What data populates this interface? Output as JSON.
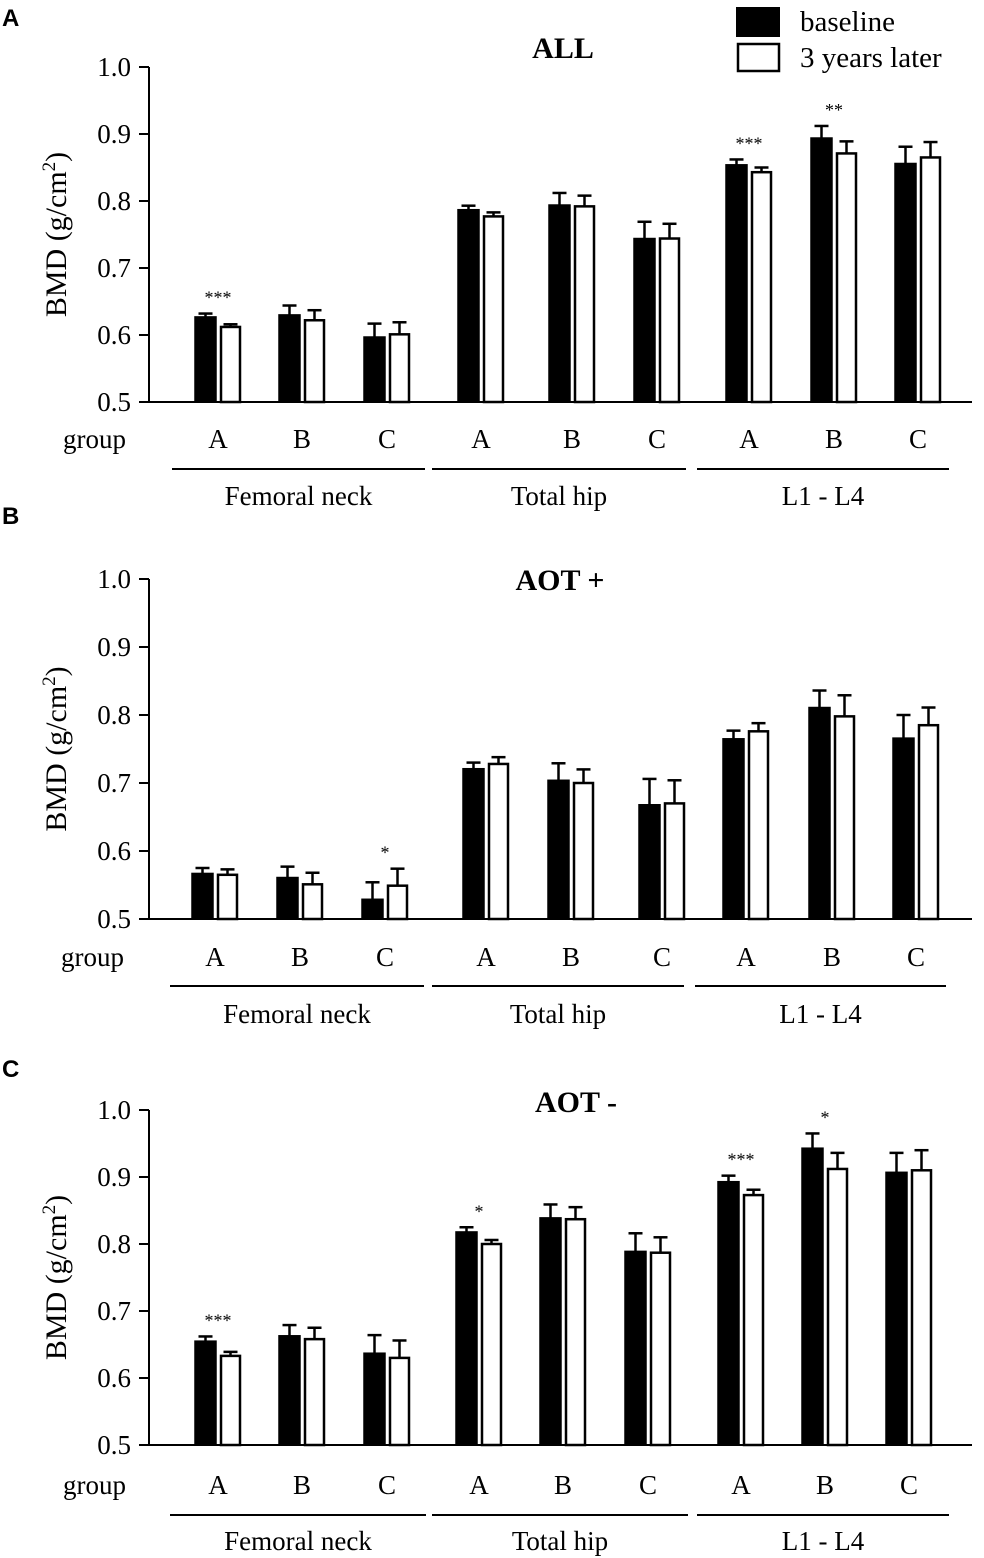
{
  "legend": {
    "baseline_label": "baseline",
    "later_label": "3 years later"
  },
  "colors": {
    "baseline": "#000000",
    "later": "#ffffff",
    "axis": "#000000"
  },
  "y_label_main": "BMD (g/cm",
  "y_label_sup": "2",
  "y_label_close": ")",
  "group_label": "group",
  "sites": [
    "Femoral neck",
    "Total hip",
    "L1 - L4"
  ],
  "groups": [
    "A",
    "B",
    "C"
  ],
  "chart_data": [
    {
      "panel": "A",
      "type": "bar",
      "title": "ALL",
      "ylim": [
        0.5,
        1.0
      ],
      "yticks": [
        "0.5",
        "0.6",
        "0.7",
        "0.8",
        "0.9",
        "1.0"
      ],
      "categories": [
        "Femoral neck A",
        "Femoral neck B",
        "Femoral neck C",
        "Total hip A",
        "Total hip B",
        "Total hip C",
        "L1 - L4 A",
        "L1 - L4 B",
        "L1 - L4 C"
      ],
      "series": [
        {
          "name": "baseline",
          "values": [
            0.627,
            0.63,
            0.597,
            0.787,
            0.794,
            0.744,
            0.854,
            0.894,
            0.856
          ],
          "errors": [
            0.005,
            0.014,
            0.02,
            0.006,
            0.018,
            0.025,
            0.008,
            0.018,
            0.025
          ]
        },
        {
          "name": "3 years later",
          "values": [
            0.612,
            0.622,
            0.601,
            0.777,
            0.792,
            0.744,
            0.843,
            0.871,
            0.865
          ],
          "errors": [
            0.004,
            0.015,
            0.018,
            0.006,
            0.016,
            0.022,
            0.007,
            0.018,
            0.023
          ]
        }
      ],
      "annotations": [
        {
          "index": 0,
          "text": "***"
        },
        {
          "index": 6,
          "text": "***"
        },
        {
          "index": 7,
          "text": "**"
        }
      ]
    },
    {
      "panel": "B",
      "type": "bar",
      "title": "AOT +",
      "ylim": [
        0.5,
        1.0
      ],
      "yticks": [
        "0.5",
        "0.6",
        "0.7",
        "0.8",
        "0.9",
        "1.0"
      ],
      "categories": [
        "Femoral neck A",
        "Femoral neck B",
        "Femoral neck C",
        "Total hip A",
        "Total hip B",
        "Total hip C",
        "L1 - L4 A",
        "L1 - L4 B",
        "L1 - L4 C"
      ],
      "series": [
        {
          "name": "baseline",
          "values": [
            0.567,
            0.561,
            0.529,
            0.721,
            0.704,
            0.668,
            0.765,
            0.811,
            0.766
          ],
          "errors": [
            0.008,
            0.016,
            0.025,
            0.009,
            0.025,
            0.038,
            0.012,
            0.025,
            0.034
          ]
        },
        {
          "name": "3 years later",
          "values": [
            0.565,
            0.551,
            0.549,
            0.728,
            0.7,
            0.67,
            0.776,
            0.798,
            0.785
          ],
          "errors": [
            0.008,
            0.017,
            0.025,
            0.01,
            0.02,
            0.034,
            0.012,
            0.031,
            0.026
          ]
        }
      ],
      "annotations": [
        {
          "index": 2,
          "text": "*"
        }
      ]
    },
    {
      "panel": "C",
      "type": "bar",
      "title": "AOT -",
      "ylim": [
        0.5,
        1.0
      ],
      "yticks": [
        "0.5",
        "0.6",
        "0.7",
        "0.8",
        "0.9",
        "1.0"
      ],
      "categories": [
        "Femoral neck A",
        "Femoral neck B",
        "Femoral neck C",
        "Total hip A",
        "Total hip B",
        "Total hip C",
        "L1 - L4 A",
        "L1 - L4 B",
        "L1 - L4 C"
      ],
      "series": [
        {
          "name": "baseline",
          "values": [
            0.655,
            0.663,
            0.637,
            0.818,
            0.839,
            0.789,
            0.893,
            0.943,
            0.907
          ],
          "errors": [
            0.007,
            0.016,
            0.027,
            0.007,
            0.02,
            0.027,
            0.009,
            0.022,
            0.029
          ]
        },
        {
          "name": "3 years later",
          "values": [
            0.633,
            0.658,
            0.63,
            0.8,
            0.837,
            0.787,
            0.873,
            0.912,
            0.91
          ],
          "errors": [
            0.006,
            0.017,
            0.026,
            0.006,
            0.018,
            0.023,
            0.008,
            0.024,
            0.03
          ]
        }
      ],
      "annotations": [
        {
          "index": 0,
          "text": "***"
        },
        {
          "index": 3,
          "text": "*"
        },
        {
          "index": 6,
          "text": "***"
        },
        {
          "index": 7,
          "text": "*"
        }
      ]
    }
  ]
}
